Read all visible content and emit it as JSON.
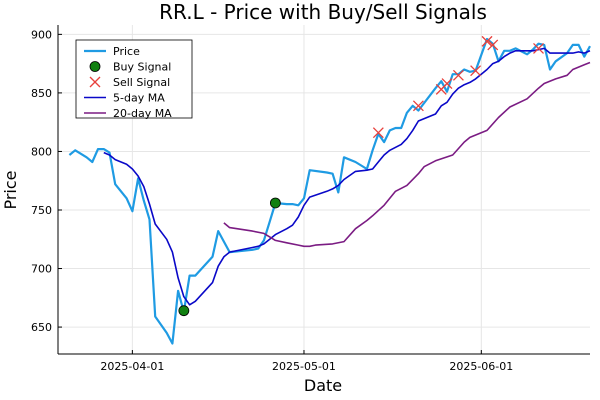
{
  "chart_data": {
    "type": "line",
    "title": "RR.L - Price with Buy/Sell Signals",
    "xlabel": "Date",
    "ylabel": "Price",
    "x_range": [
      "2025-03-19",
      "2025-06-20"
    ],
    "ylim": [
      627,
      908
    ],
    "x_ticks": [
      {
        "date": "2025-04-01",
        "label": "2025-04-01"
      },
      {
        "date": "2025-05-01",
        "label": "2025-05-01"
      },
      {
        "date": "2025-06-01",
        "label": "2025-06-01"
      }
    ],
    "y_ticks": [
      650,
      700,
      750,
      800,
      850,
      900
    ],
    "grid": true,
    "legend_position": "top-left",
    "series": [
      {
        "name": "Price",
        "kind": "line",
        "color": "#1f9be3",
        "points": [
          [
            "2025-03-21",
            797
          ],
          [
            "2025-03-22",
            801
          ],
          [
            "2025-03-24",
            795
          ],
          [
            "2025-03-25",
            791
          ],
          [
            "2025-03-26",
            802
          ],
          [
            "2025-03-27",
            802
          ],
          [
            "2025-03-28",
            799
          ],
          [
            "2025-03-29",
            772
          ],
          [
            "2025-03-31",
            760
          ],
          [
            "2025-04-01",
            749
          ],
          [
            "2025-04-02",
            777
          ],
          [
            "2025-04-03",
            758
          ],
          [
            "2025-04-04",
            742
          ],
          [
            "2025-04-05",
            659
          ],
          [
            "2025-04-07",
            645
          ],
          [
            "2025-04-08",
            636
          ],
          [
            "2025-04-09",
            681
          ],
          [
            "2025-04-10",
            663
          ],
          [
            "2025-04-11",
            694
          ],
          [
            "2025-04-12",
            694
          ],
          [
            "2025-04-15",
            710
          ],
          [
            "2025-04-16",
            732
          ],
          [
            "2025-04-17",
            723
          ],
          [
            "2025-04-18",
            714
          ],
          [
            "2025-04-22",
            716
          ],
          [
            "2025-04-23",
            717
          ],
          [
            "2025-04-24",
            724
          ],
          [
            "2025-04-25",
            740
          ],
          [
            "2025-04-26",
            756
          ],
          [
            "2025-04-28",
            755
          ],
          [
            "2025-04-29",
            755
          ],
          [
            "2025-04-30",
            754
          ],
          [
            "2025-05-01",
            760
          ],
          [
            "2025-05-02",
            784
          ],
          [
            "2025-05-05",
            782
          ],
          [
            "2025-05-06",
            781
          ],
          [
            "2025-05-07",
            765
          ],
          [
            "2025-05-08",
            795
          ],
          [
            "2025-05-10",
            791
          ],
          [
            "2025-05-12",
            785
          ],
          [
            "2025-05-13",
            801
          ],
          [
            "2025-05-14",
            815
          ],
          [
            "2025-05-15",
            808
          ],
          [
            "2025-05-16",
            818
          ],
          [
            "2025-05-17",
            820
          ],
          [
            "2025-05-18",
            820
          ],
          [
            "2025-05-19",
            833
          ],
          [
            "2025-05-20",
            839
          ],
          [
            "2025-05-21",
            835
          ],
          [
            "2025-05-24",
            854
          ],
          [
            "2025-05-25",
            860
          ],
          [
            "2025-05-26",
            851
          ],
          [
            "2025-05-27",
            866
          ],
          [
            "2025-05-28",
            866
          ],
          [
            "2025-05-29",
            870
          ],
          [
            "2025-05-30",
            868
          ],
          [
            "2025-05-31",
            869
          ],
          [
            "2025-06-02",
            896
          ],
          [
            "2025-06-03",
            892
          ],
          [
            "2025-06-04",
            877
          ],
          [
            "2025-06-05",
            886
          ],
          [
            "2025-06-06",
            886
          ],
          [
            "2025-06-07",
            888
          ],
          [
            "2025-06-09",
            883
          ],
          [
            "2025-06-10",
            887
          ],
          [
            "2025-06-11",
            892
          ],
          [
            "2025-06-12",
            891
          ],
          [
            "2025-06-13",
            870
          ],
          [
            "2025-06-14",
            877
          ],
          [
            "2025-06-16",
            884
          ],
          [
            "2025-06-17",
            891
          ],
          [
            "2025-06-18",
            891
          ],
          [
            "2025-06-19",
            881
          ],
          [
            "2025-06-20",
            890
          ]
        ]
      },
      {
        "name": "Buy Signal",
        "kind": "marker-circle",
        "color": "#118011",
        "points": [
          [
            "2025-04-10",
            664
          ],
          [
            "2025-04-26",
            756
          ]
        ]
      },
      {
        "name": "Sell Signal",
        "kind": "marker-x",
        "color": "#e8403c",
        "points": [
          [
            "2025-05-14",
            816
          ],
          [
            "2025-05-21",
            839
          ],
          [
            "2025-05-25",
            853
          ],
          [
            "2025-05-26",
            858
          ],
          [
            "2025-05-28",
            865
          ],
          [
            "2025-05-31",
            869
          ],
          [
            "2025-06-02",
            894
          ],
          [
            "2025-06-03",
            891
          ],
          [
            "2025-06-11",
            888
          ]
        ]
      },
      {
        "name": "5-day MA",
        "kind": "line",
        "color": "#0a08c8",
        "points": [
          [
            "2025-03-27",
            799
          ],
          [
            "2025-03-28",
            797
          ],
          [
            "2025-03-29",
            793
          ],
          [
            "2025-03-31",
            789
          ],
          [
            "2025-04-01",
            785
          ],
          [
            "2025-04-02",
            779
          ],
          [
            "2025-04-03",
            770
          ],
          [
            "2025-04-04",
            755
          ],
          [
            "2025-04-05",
            738
          ],
          [
            "2025-04-07",
            725
          ],
          [
            "2025-04-08",
            714
          ],
          [
            "2025-04-09",
            692
          ],
          [
            "2025-04-10",
            676
          ],
          [
            "2025-04-11",
            669
          ],
          [
            "2025-04-12",
            672
          ],
          [
            "2025-04-15",
            688
          ],
          [
            "2025-04-16",
            702
          ],
          [
            "2025-04-17",
            710
          ],
          [
            "2025-04-18",
            714
          ],
          [
            "2025-04-22",
            718
          ],
          [
            "2025-04-23",
            719
          ],
          [
            "2025-04-24",
            721
          ],
          [
            "2025-04-25",
            725
          ],
          [
            "2025-04-26",
            729
          ],
          [
            "2025-04-28",
            734
          ],
          [
            "2025-04-29",
            737
          ],
          [
            "2025-04-30",
            744
          ],
          [
            "2025-05-01",
            754
          ],
          [
            "2025-05-02",
            761
          ],
          [
            "2025-05-05",
            766
          ],
          [
            "2025-05-06",
            768
          ],
          [
            "2025-05-07",
            771
          ],
          [
            "2025-05-08",
            776
          ],
          [
            "2025-05-10",
            783
          ],
          [
            "2025-05-12",
            784
          ],
          [
            "2025-05-13",
            785
          ],
          [
            "2025-05-14",
            791
          ],
          [
            "2025-05-15",
            797
          ],
          [
            "2025-05-16",
            801
          ],
          [
            "2025-05-18",
            806
          ],
          [
            "2025-05-19",
            811
          ],
          [
            "2025-05-20",
            818
          ],
          [
            "2025-05-21",
            826
          ],
          [
            "2025-05-24",
            832
          ],
          [
            "2025-05-25",
            839
          ],
          [
            "2025-05-26",
            842
          ],
          [
            "2025-05-27",
            849
          ],
          [
            "2025-05-28",
            854
          ],
          [
            "2025-05-29",
            857
          ],
          [
            "2025-05-30",
            859
          ],
          [
            "2025-05-31",
            862
          ],
          [
            "2025-06-02",
            870
          ],
          [
            "2025-06-03",
            875
          ],
          [
            "2025-06-04",
            877
          ],
          [
            "2025-06-05",
            881
          ],
          [
            "2025-06-06",
            884
          ],
          [
            "2025-06-07",
            886
          ],
          [
            "2025-06-09",
            886
          ],
          [
            "2025-06-10",
            886
          ],
          [
            "2025-06-11",
            887
          ],
          [
            "2025-06-12",
            888
          ],
          [
            "2025-06-13",
            884
          ],
          [
            "2025-06-14",
            884
          ],
          [
            "2025-06-16",
            884
          ],
          [
            "2025-06-17",
            884
          ],
          [
            "2025-06-18",
            885
          ],
          [
            "2025-06-19",
            884
          ],
          [
            "2025-06-20",
            886
          ]
        ]
      },
      {
        "name": "20-day MA",
        "kind": "line",
        "color": "#7b1c83",
        "points": [
          [
            "2025-04-17",
            739
          ],
          [
            "2025-04-18",
            735
          ],
          [
            "2025-04-22",
            732
          ],
          [
            "2025-04-24",
            730
          ],
          [
            "2025-04-25",
            727
          ],
          [
            "2025-04-26",
            724
          ],
          [
            "2025-04-28",
            722
          ],
          [
            "2025-04-30",
            720
          ],
          [
            "2025-05-01",
            719
          ],
          [
            "2025-05-02",
            719
          ],
          [
            "2025-05-03",
            720
          ],
          [
            "2025-05-06",
            721
          ],
          [
            "2025-05-08",
            723
          ],
          [
            "2025-05-10",
            734
          ],
          [
            "2025-05-12",
            741
          ],
          [
            "2025-05-13",
            745
          ],
          [
            "2025-05-15",
            754
          ],
          [
            "2025-05-17",
            766
          ],
          [
            "2025-05-19",
            771
          ],
          [
            "2025-05-21",
            781
          ],
          [
            "2025-05-22",
            787
          ],
          [
            "2025-05-24",
            792
          ],
          [
            "2025-05-27",
            797
          ],
          [
            "2025-05-29",
            808
          ],
          [
            "2025-05-30",
            812
          ],
          [
            "2025-06-02",
            818
          ],
          [
            "2025-06-04",
            829
          ],
          [
            "2025-06-06",
            838
          ],
          [
            "2025-06-09",
            845
          ],
          [
            "2025-06-11",
            854
          ],
          [
            "2025-06-12",
            858
          ],
          [
            "2025-06-14",
            862
          ],
          [
            "2025-06-16",
            865
          ],
          [
            "2025-06-17",
            870
          ],
          [
            "2025-06-19",
            874
          ],
          [
            "2025-06-20",
            876
          ]
        ]
      }
    ]
  }
}
